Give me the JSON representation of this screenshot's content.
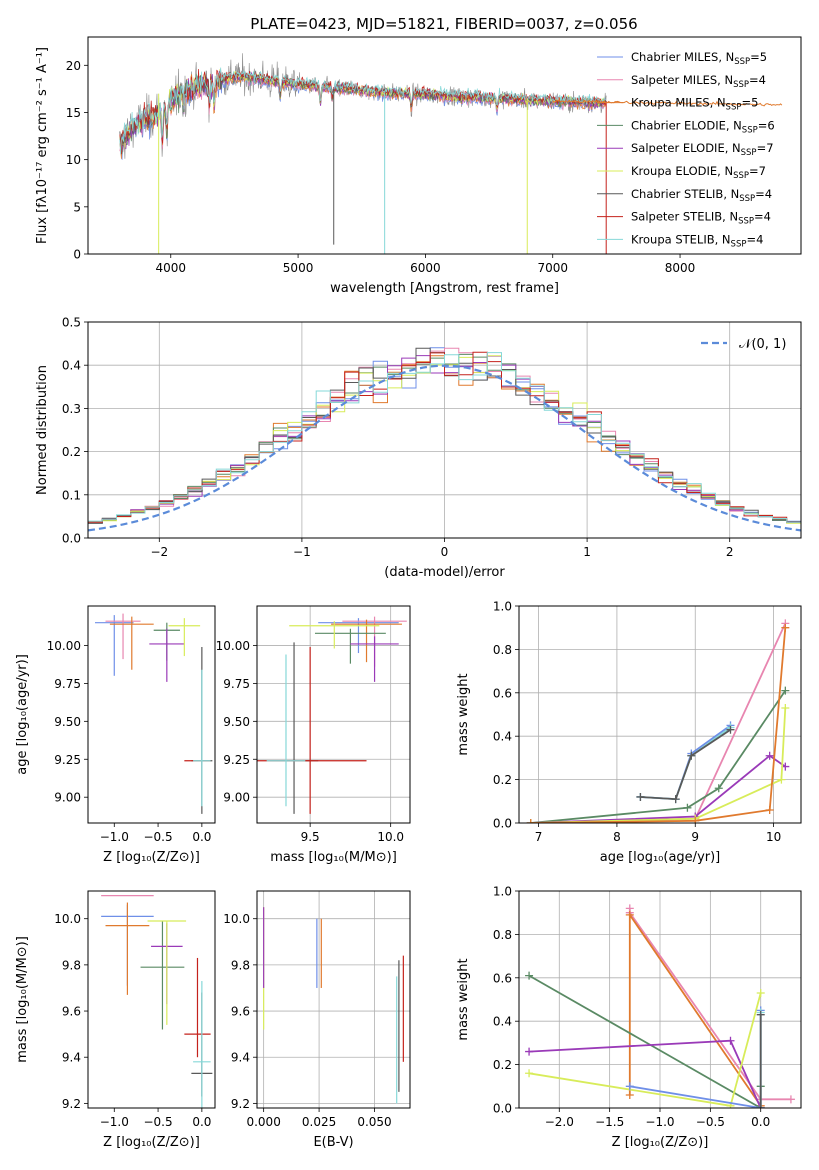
{
  "figure_title": "PLATE=0423, MJD=51821, FIBERID=0037, z=0.056",
  "colors": {
    "chabrier_miles": "#6f8fe8",
    "salpeter_miles": "#e886b0",
    "kroupa_miles": "#e07a2e",
    "chabrier_elodie": "#5a8a64",
    "salpeter_elodie": "#9a3ab8",
    "kroupa_elodie": "#d8ec5a",
    "chabrier_stelib": "#595959",
    "salpeter_stelib": "#c4221c",
    "kroupa_stelib": "#86d8d8",
    "normal_curve": "#5b8bd9",
    "grid": "#b0b0b0"
  },
  "chart_data": [
    {
      "id": "spectrum",
      "type": "line",
      "title": "PLATE=0423, MJD=51821, FIBERID=0037, z=0.056",
      "xlabel": "wavelength [Angstrom, rest frame]",
      "ylabel": "Flux [fλ10⁻¹⁷ erg cm⁻² s⁻¹ A⁻¹]",
      "xlim": [
        3350,
        8950
      ],
      "ylim": [
        0,
        23
      ],
      "xticks": [
        4000,
        5000,
        6000,
        7000,
        8000
      ],
      "yticks": [
        0,
        5,
        10,
        15,
        20
      ],
      "grid": false,
      "legend_position": "top-right",
      "legend": [
        {
          "text": "Chabrier MILES, N",
          "sub": "SSP",
          "suffix": "=5",
          "color_key": "chabrier_miles"
        },
        {
          "text": "Salpeter MILES, N",
          "sub": "SSP",
          "suffix": "=4",
          "color_key": "salpeter_miles"
        },
        {
          "text": "Kroupa MILES, N",
          "sub": "SSP",
          "suffix": "=5",
          "color_key": "kroupa_miles"
        },
        {
          "text": "Chabrier ELODIE, N",
          "sub": "SSP",
          "suffix": "=6",
          "color_key": "chabrier_elodie"
        },
        {
          "text": "Salpeter ELODIE, N",
          "sub": "SSP",
          "suffix": "=7",
          "color_key": "salpeter_elodie"
        },
        {
          "text": "Kroupa ELODIE, N",
          "sub": "SSP",
          "suffix": "=7",
          "color_key": "kroupa_elodie"
        },
        {
          "text": "Chabrier STELIB, N",
          "sub": "SSP",
          "suffix": "=4",
          "color_key": "chabrier_stelib"
        },
        {
          "text": "Salpeter STELIB, N",
          "sub": "SSP",
          "suffix": "=4",
          "color_key": "salpeter_stelib"
        },
        {
          "text": "Kroupa STELIB, N",
          "sub": "SSP",
          "suffix": "=4",
          "color_key": "kroupa_stelib"
        }
      ],
      "continuum": [
        [
          3600,
          11.5
        ],
        [
          3700,
          13.5
        ],
        [
          3800,
          14.2
        ],
        [
          3900,
          15.0
        ],
        [
          4000,
          16.2
        ],
        [
          4100,
          17.2
        ],
        [
          4200,
          17.8
        ],
        [
          4300,
          18.0
        ],
        [
          4400,
          18.5
        ],
        [
          4500,
          18.8
        ],
        [
          4600,
          18.7
        ],
        [
          4700,
          18.6
        ],
        [
          4800,
          18.3
        ],
        [
          4900,
          18.2
        ],
        [
          5000,
          18.0
        ],
        [
          5200,
          17.7
        ],
        [
          5400,
          17.5
        ],
        [
          5600,
          17.2
        ],
        [
          5800,
          17.0
        ],
        [
          6000,
          16.9
        ],
        [
          6200,
          16.7
        ],
        [
          6400,
          16.6
        ],
        [
          6600,
          16.5
        ],
        [
          6800,
          16.3
        ],
        [
          7000,
          16.2
        ],
        [
          7200,
          16.1
        ],
        [
          7400,
          16.0
        ]
      ],
      "model_continuum": [
        [
          7000,
          16.2
        ],
        [
          8800,
          15.8
        ]
      ],
      "absorption_lines": [
        {
          "x": 3934,
          "depth": 4.0
        },
        {
          "x": 3969,
          "depth": 3.5
        },
        {
          "x": 4102,
          "depth": 1.8
        },
        {
          "x": 4304,
          "depth": 2.2
        },
        {
          "x": 4341,
          "depth": 2.5
        },
        {
          "x": 4861,
          "depth": 1.6
        },
        {
          "x": 5175,
          "depth": 2.0
        },
        {
          "x": 5270,
          "depth": 1.2
        },
        {
          "x": 5890,
          "depth": 1.5
        },
        {
          "x": 6563,
          "depth": 1.4
        }
      ],
      "spikes": [
        {
          "x": 3905,
          "low": 0,
          "high": 17,
          "color_key": "kroupa_elodie"
        },
        {
          "x": 5280,
          "low": 1,
          "high": 17.5,
          "color_key": "chabrier_stelib"
        },
        {
          "x": 5680,
          "low": 0,
          "high": 17,
          "color_key": "kroupa_stelib"
        },
        {
          "x": 6800,
          "low": 0,
          "high": 16.5,
          "color_key": "kroupa_elodie"
        },
        {
          "x": 7420,
          "low": 0,
          "high": 16.2,
          "color_key": "salpeter_stelib"
        }
      ]
    },
    {
      "id": "residual_hist",
      "type": "bar",
      "xlabel": "(data-model)/error",
      "ylabel": "Normed distribution",
      "xlim": [
        -2.5,
        2.5
      ],
      "ylim": [
        0,
        0.5
      ],
      "xticks": [
        -2,
        -1,
        0,
        1,
        2
      ],
      "yticks": [
        0.0,
        0.1,
        0.2,
        0.3,
        0.4,
        0.5
      ],
      "grid": true,
      "legend_position": "top-right",
      "legend": [
        {
          "text": "𝒩(0, 1)",
          "color_key": "normal_curve",
          "style": "dashed"
        }
      ],
      "bin_width": 0.1
    },
    {
      "id": "age_vs_z",
      "type": "scatter",
      "xlabel": "Z [log₁₀(Z/Z⊙)]",
      "ylabel": "age  [log₁₀(age/yr)]",
      "xlim": [
        -1.3,
        0.15
      ],
      "ylim": [
        8.83,
        10.26
      ],
      "xticks": [
        -1.0,
        -0.5,
        0.0
      ],
      "yticks": [
        9.0,
        9.25,
        9.5,
        9.75,
        10.0
      ],
      "grid": false,
      "points": [
        {
          "x": -1.0,
          "y": 10.15,
          "xerr": 0.22,
          "yerr": [
            0.35,
            0.05
          ],
          "color_key": "chabrier_miles"
        },
        {
          "x": -0.9,
          "y": 10.16,
          "xerr": 0.2,
          "yerr": [
            0.25,
            0.05
          ],
          "color_key": "salpeter_miles"
        },
        {
          "x": -0.8,
          "y": 10.14,
          "xerr": 0.25,
          "yerr": [
            0.3,
            0.05
          ],
          "color_key": "kroupa_miles"
        },
        {
          "x": -0.4,
          "y": 10.1,
          "xerr": 0.15,
          "yerr": [
            0.2,
            0.05
          ],
          "color_key": "chabrier_elodie"
        },
        {
          "x": -0.4,
          "y": 10.01,
          "xerr": 0.2,
          "yerr": [
            0.25,
            0.1
          ],
          "color_key": "salpeter_elodie"
        },
        {
          "x": -0.2,
          "y": 10.13,
          "xerr": 0.18,
          "yerr": [
            0.2,
            0.05
          ],
          "color_key": "kroupa_elodie"
        },
        {
          "x": 0.0,
          "y": 9.24,
          "xerr": 0.12,
          "yerr": [
            0.35,
            0.75
          ],
          "color_key": "chabrier_stelib"
        },
        {
          "x": -0.05,
          "y": 9.24,
          "xerr": 0.15,
          "yerr": [
            0.0,
            0.0
          ],
          "color_key": "salpeter_stelib"
        },
        {
          "x": 0.0,
          "y": 9.24,
          "xerr": 0.1,
          "yerr": [
            0.3,
            0.6
          ],
          "color_key": "kroupa_stelib"
        }
      ]
    },
    {
      "id": "age_vs_mass",
      "type": "scatter",
      "xlabel": "mass [log₁₀(M/M⊙)]",
      "ylabel": "",
      "xlim": [
        9.17,
        10.12
      ],
      "ylim": [
        8.83,
        10.26
      ],
      "xticks": [
        9.5,
        10.0
      ],
      "yticks": [
        9.0,
        9.25,
        9.5,
        9.75,
        10.0
      ],
      "grid": true,
      "points": [
        {
          "x": 9.8,
          "y": 10.15,
          "xerr": 0.25,
          "yerr": [
            0.2,
            0.03
          ],
          "color_key": "chabrier_miles"
        },
        {
          "x": 9.9,
          "y": 10.16,
          "xerr": 0.2,
          "yerr": [
            0.3,
            0.03
          ],
          "color_key": "salpeter_miles"
        },
        {
          "x": 9.85,
          "y": 10.14,
          "xerr": 0.22,
          "yerr": [
            0.25,
            0.03
          ],
          "color_key": "kroupa_miles"
        },
        {
          "x": 9.75,
          "y": 10.08,
          "xerr": 0.22,
          "yerr": [
            0.2,
            0.03
          ],
          "color_key": "chabrier_elodie"
        },
        {
          "x": 9.9,
          "y": 10.01,
          "xerr": 0.15,
          "yerr": [
            0.25,
            0.05
          ],
          "color_key": "salpeter_elodie"
        },
        {
          "x": 9.65,
          "y": 10.13,
          "xerr": 0.28,
          "yerr": [
            0.15,
            0.03
          ],
          "color_key": "kroupa_elodie"
        },
        {
          "x": 9.4,
          "y": 9.24,
          "xerr": 0.15,
          "yerr": [
            0.35,
            0.78
          ],
          "color_key": "chabrier_stelib"
        },
        {
          "x": 9.5,
          "y": 9.24,
          "xerr": 0.35,
          "yerr": [
            0.35,
            0.75
          ],
          "color_key": "salpeter_stelib"
        },
        {
          "x": 9.35,
          "y": 9.24,
          "xerr": 0.12,
          "yerr": [
            0.3,
            0.7
          ],
          "color_key": "kroupa_stelib"
        }
      ]
    },
    {
      "id": "weight_vs_age",
      "type": "line",
      "xlabel": "age  [log₁₀(age/yr)]",
      "ylabel": "mass weight",
      "xlim": [
        6.75,
        10.35
      ],
      "ylim": [
        0,
        1.0
      ],
      "xticks": [
        7,
        8,
        9,
        10
      ],
      "yticks": [
        0.0,
        0.2,
        0.4,
        0.6,
        0.8,
        1.0
      ],
      "grid": true,
      "series": [
        {
          "color_key": "chabrier_miles",
          "x": [
            8.3,
            8.75,
            8.95,
            9.45
          ],
          "y": [
            0.12,
            0.11,
            0.32,
            0.45
          ]
        },
        {
          "color_key": "kroupa_stelib",
          "x": [
            8.3,
            8.75,
            8.95,
            9.45
          ],
          "y": [
            0.12,
            0.11,
            0.31,
            0.44
          ]
        },
        {
          "color_key": "chabrier_stelib",
          "x": [
            8.3,
            8.75,
            8.95,
            9.45
          ],
          "y": [
            0.12,
            0.11,
            0.31,
            0.43
          ]
        },
        {
          "color_key": "salpeter_miles",
          "x": [
            6.9,
            9.0,
            10.15
          ],
          "y": [
            0.0,
            0.02,
            0.92
          ]
        },
        {
          "color_key": "chabrier_elodie",
          "x": [
            6.9,
            8.9,
            9.3,
            10.15
          ],
          "y": [
            0.0,
            0.07,
            0.16,
            0.61
          ]
        },
        {
          "color_key": "salpeter_elodie",
          "x": [
            6.9,
            9.0,
            9.95,
            10.15
          ],
          "y": [
            0.0,
            0.03,
            0.31,
            0.26
          ]
        },
        {
          "color_key": "kroupa_elodie",
          "x": [
            6.9,
            9.0,
            10.1,
            10.15
          ],
          "y": [
            0.0,
            0.02,
            0.2,
            0.53
          ]
        },
        {
          "color_key": "kroupa_miles",
          "x": [
            6.9,
            9.0,
            9.95,
            10.15
          ],
          "y": [
            0.0,
            0.01,
            0.06,
            0.9
          ]
        }
      ]
    },
    {
      "id": "mass_vs_z",
      "type": "scatter",
      "xlabel": "Z [log₁₀(Z/Z⊙)]",
      "ylabel": "mass [log₁₀(M/M⊙)]",
      "xlim": [
        -1.3,
        0.15
      ],
      "ylim": [
        9.18,
        10.12
      ],
      "xticks": [
        -1.0,
        -0.5,
        0.0
      ],
      "yticks": [
        9.2,
        9.4,
        9.6,
        9.8,
        10.0
      ],
      "grid": false,
      "points": [
        {
          "x": -0.85,
          "y": 10.01,
          "xerr": 0.3,
          "yerr": [
            0.3,
            0.05
          ],
          "color_key": "chabrier_miles"
        },
        {
          "x": -0.85,
          "y": 10.1,
          "xerr": 0.3,
          "yerr": [
            0.0,
            0.0
          ],
          "color_key": "salpeter_miles"
        },
        {
          "x": -0.85,
          "y": 9.97,
          "xerr": 0.25,
          "yerr": [
            0.3,
            0.1
          ],
          "color_key": "kroupa_miles"
        },
        {
          "x": -0.45,
          "y": 9.79,
          "xerr": 0.25,
          "yerr": [
            0.27,
            0.2
          ],
          "color_key": "chabrier_elodie"
        },
        {
          "x": -0.4,
          "y": 9.88,
          "xerr": 0.18,
          "yerr": [
            0.25,
            0.1
          ],
          "color_key": "salpeter_elodie"
        },
        {
          "x": -0.4,
          "y": 9.99,
          "xerr": 0.22,
          "yerr": [
            0.45,
            0.0
          ],
          "color_key": "kroupa_elodie"
        },
        {
          "x": 0.0,
          "y": 9.33,
          "xerr": 0.12,
          "yerr": [
            0.1,
            0.35
          ],
          "color_key": "chabrier_stelib"
        },
        {
          "x": -0.05,
          "y": 9.5,
          "xerr": 0.15,
          "yerr": [
            0.1,
            0.33
          ],
          "color_key": "salpeter_stelib"
        },
        {
          "x": 0.0,
          "y": 9.38,
          "xerr": 0.1,
          "yerr": [
            0.2,
            0.35
          ],
          "color_key": "kroupa_stelib"
        }
      ]
    },
    {
      "id": "mass_vs_ebv",
      "type": "scatter",
      "xlabel": "E(B-V)",
      "ylabel": "",
      "xlim": [
        -0.003,
        0.066
      ],
      "ylim": [
        9.18,
        10.12
      ],
      "xticks": [
        0.0,
        0.025,
        0.05
      ],
      "yticks": [
        9.2,
        9.4,
        9.6,
        9.8,
        10.0
      ],
      "grid": true,
      "points": [
        {
          "x": 0.024,
          "y": 9.85,
          "yerr": [
            0.15,
            0.15
          ],
          "color_key": "chabrier_miles"
        },
        {
          "x": 0.026,
          "y": 9.85,
          "yerr": [
            0.15,
            0.15
          ],
          "color_key": "kroupa_miles"
        },
        {
          "x": 0.0,
          "y": 9.8,
          "yerr": [
            0.28,
            0.25
          ],
          "color_key": "kroupa_elodie"
        },
        {
          "x": 0.0,
          "y": 9.85,
          "yerr": [
            0.15,
            0.2
          ],
          "color_key": "salpeter_elodie"
        },
        {
          "x": 0.061,
          "y": 9.5,
          "yerr": [
            0.25,
            0.32
          ],
          "color_key": "chabrier_stelib"
        },
        {
          "x": 0.063,
          "y": 9.6,
          "yerr": [
            0.22,
            0.24
          ],
          "color_key": "salpeter_stelib"
        },
        {
          "x": 0.06,
          "y": 9.5,
          "yerr": [
            0.3,
            0.25
          ],
          "color_key": "kroupa_stelib"
        }
      ]
    },
    {
      "id": "weight_vs_z",
      "type": "line",
      "xlabel": "Z [log₁₀(Z/Z⊙)]",
      "ylabel": "mass weight",
      "xlim": [
        -2.4,
        0.4
      ],
      "ylim": [
        0,
        1.0
      ],
      "xticks": [
        -2.0,
        -1.5,
        -1.0,
        -0.5,
        0.0
      ],
      "yticks": [
        0.0,
        0.2,
        0.4,
        0.6,
        0.8,
        1.0
      ],
      "grid": true,
      "series": [
        {
          "color_key": "salpeter_miles",
          "x": [
            -1.3,
            -1.3,
            0.0,
            0.3
          ],
          "y": [
            0.92,
            0.9,
            0.04,
            0.04
          ]
        },
        {
          "color_key": "kroupa_miles",
          "x": [
            -1.3,
            -1.3,
            0.0
          ],
          "y": [
            0.06,
            0.89,
            0.01
          ]
        },
        {
          "color_key": "chabrier_elodie",
          "x": [
            -2.3,
            0.0,
            0.0
          ],
          "y": [
            0.61,
            0.0,
            0.1
          ]
        },
        {
          "color_key": "salpeter_elodie",
          "x": [
            -2.3,
            -0.3,
            0.0
          ],
          "y": [
            0.26,
            0.31,
            0.0
          ]
        },
        {
          "color_key": "kroupa_elodie",
          "x": [
            -2.3,
            -0.3,
            0.0
          ],
          "y": [
            0.16,
            0.01,
            0.53
          ]
        },
        {
          "color_key": "chabrier_miles",
          "x": [
            -1.3,
            0.0
          ],
          "y": [
            0.1,
            0.0
          ]
        },
        {
          "color_key": "chabrier_miles",
          "x": [
            0.0,
            0.0
          ],
          "y": [
            0.0,
            0.45
          ]
        },
        {
          "color_key": "kroupa_stelib",
          "x": [
            0.0,
            0.0
          ],
          "y": [
            0.0,
            0.44
          ]
        },
        {
          "color_key": "chabrier_stelib",
          "x": [
            0.0,
            0.0
          ],
          "y": [
            0.0,
            0.43
          ]
        }
      ]
    }
  ]
}
